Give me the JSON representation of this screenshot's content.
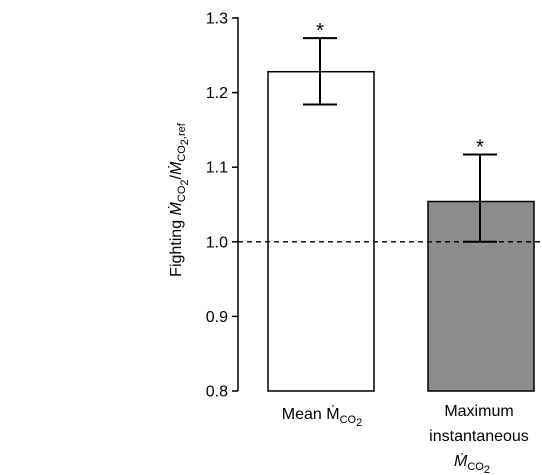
{
  "chart_data": {
    "type": "bar",
    "ylabel": {
      "prefix": "Fighting ",
      "num_main": "Ṁ",
      "num_sub": "CO",
      "num_sub2": "2",
      "slash": "/",
      "den_main": "Ṁ",
      "den_sub": "CO",
      "den_sub2": "2",
      "den_sub3": ",ref"
    },
    "ylim": [
      0.8,
      1.3
    ],
    "yticks": [
      "0.8",
      "0.9",
      "1.0",
      "1.1",
      "1.2",
      "1.3"
    ],
    "reference_line": 1.0,
    "categories": [
      {
        "lines": [
          "Mean Ṁ",
          "CO",
          "2"
        ]
      },
      {
        "lines": [
          "Maximum",
          "instantaneous",
          "Ṁ",
          "CO",
          "2"
        ]
      }
    ],
    "values": [
      1.228,
      1.054
    ],
    "error_upper": [
      1.273,
      1.117
    ],
    "error_lower": [
      1.184,
      1.0
    ],
    "significance": [
      "*",
      "*"
    ],
    "colors": {
      "bar1": "#ffffff",
      "bar2": "#8c8c8c",
      "stroke": "#000000"
    }
  }
}
